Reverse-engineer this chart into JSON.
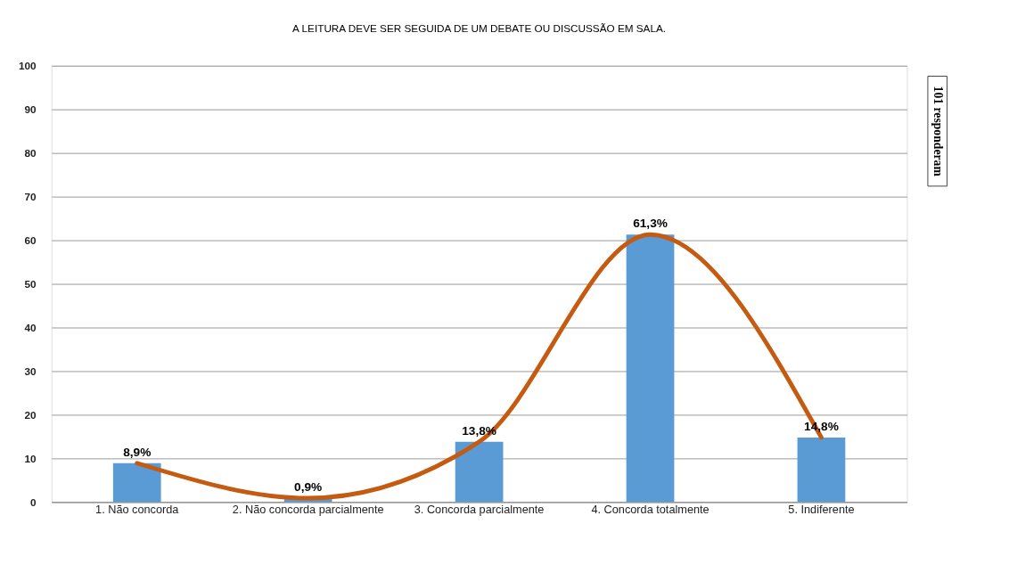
{
  "chart_data": {
    "type": "bar",
    "title": "A LEITURA DEVE SER SEGUIDA DE UM DEBATE OU DISCUSSÃO EM SALA.",
    "categories": [
      "1. Não concorda",
      "2. Não concorda parcialmente",
      "3. Concorda parcialmente",
      "4. Concorda totalmente",
      "5. Indiferente"
    ],
    "series": [
      {
        "color": "#5b9bd5",
        "values": [
          8.9,
          0.9,
          13.8,
          61.3,
          14.8
        ],
        "value_labels": [
          "8,9%",
          "0,9%",
          "13,8%",
          "61,3%",
          "14,8%"
        ]
      },
      {
        "type": "line",
        "color": "#c55a11",
        "values": [
          8.9,
          0.9,
          13.8,
          61.3,
          14.8
        ]
      }
    ],
    "ylim": [
      0,
      100
    ],
    "yticks": [
      0,
      10,
      20,
      30,
      40,
      50,
      60,
      70,
      80,
      90,
      100
    ],
    "grid": "y",
    "annotations": [
      "101 responderam"
    ]
  }
}
